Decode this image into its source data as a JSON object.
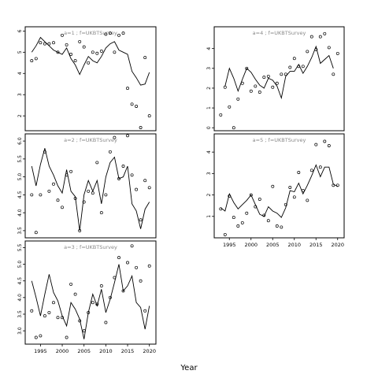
{
  "figure": {
    "xlabel": "Year",
    "colors": {
      "frame": "#000000",
      "panel_label": "#888888",
      "line": "#000000",
      "points": "#000000"
    }
  },
  "chart_data": [
    {
      "type": "line",
      "title": "a=1 ; f=UKBTSurvey",
      "xlim": [
        1991.5,
        2021.5
      ],
      "ylim": [
        1.3,
        6.2
      ],
      "yticks": [
        2,
        3,
        4,
        5,
        6
      ],
      "ytick_labels": [
        "2",
        "3",
        "4",
        "5",
        "6"
      ],
      "xticks": [],
      "xtick_labels": [],
      "series": [
        {
          "style": "line",
          "x": [
            1993,
            1994,
            1995,
            1996,
            1997,
            1998,
            1999,
            2000,
            2001,
            2002,
            2003,
            2004,
            2005,
            2006,
            2007,
            2008,
            2009,
            2010,
            2011,
            2012,
            2013,
            2014,
            2015,
            2016,
            2017,
            2018,
            2019,
            2020
          ],
          "y": [
            5.0,
            5.3,
            5.7,
            5.5,
            5.3,
            5.1,
            5.0,
            4.9,
            5.2,
            4.7,
            4.4,
            3.95,
            4.4,
            4.8,
            4.6,
            4.5,
            4.8,
            5.2,
            5.4,
            5.5,
            5.1,
            5.0,
            4.9,
            4.1,
            3.8,
            3.45,
            3.5,
            4.05
          ]
        },
        {
          "style": "points",
          "x": [
            1993,
            1994,
            1995,
            1996,
            1997,
            1998,
            1999,
            2000,
            2001,
            2002,
            2003,
            2004,
            2005,
            2006,
            2007,
            2008,
            2009,
            2010,
            2011,
            2012,
            2013,
            2014,
            2015,
            2016,
            2017,
            2018,
            2019,
            2020
          ],
          "y": [
            4.6,
            4.7,
            5.45,
            5.4,
            5.4,
            5.45,
            5.0,
            5.8,
            5.35,
            4.9,
            4.6,
            5.5,
            5.25,
            4.5,
            5.0,
            4.95,
            5.05,
            5.85,
            5.9,
            5.0,
            5.8,
            5.9,
            3.3,
            2.55,
            2.45,
            1.45,
            4.75,
            2.0
          ]
        }
      ]
    },
    {
      "type": "line",
      "title": "a=2 ; f=UKBTSurvey",
      "xlim": [
        1991.5,
        2021.5
      ],
      "ylim": [
        3.3,
        6.2
      ],
      "yticks": [
        3.5,
        4.0,
        4.5,
        5.0,
        5.5,
        6.0
      ],
      "ytick_labels": [
        "3.5",
        "4.0",
        "4.5",
        "5.0",
        "5.5",
        "6.0"
      ],
      "xticks": [],
      "xtick_labels": [],
      "series": [
        {
          "style": "line",
          "x": [
            1993,
            1994,
            1995,
            1996,
            1997,
            1998,
            1999,
            2000,
            2001,
            2002,
            2003,
            2004,
            2005,
            2006,
            2007,
            2008,
            2009,
            2010,
            2011,
            2012,
            2013,
            2014,
            2015,
            2016,
            2017,
            2018,
            2019,
            2020
          ],
          "y": [
            5.3,
            4.75,
            5.35,
            5.8,
            5.3,
            5.05,
            4.75,
            4.55,
            5.2,
            4.6,
            4.45,
            3.5,
            4.5,
            4.9,
            4.6,
            4.9,
            4.25,
            5.0,
            5.4,
            5.55,
            4.95,
            5.0,
            5.3,
            4.25,
            4.05,
            3.55,
            4.1,
            4.3
          ]
        },
        {
          "style": "points",
          "x": [
            1993,
            1994,
            1995,
            1996,
            1997,
            1998,
            1999,
            2000,
            2001,
            2002,
            2003,
            2004,
            2005,
            2006,
            2007,
            2008,
            2009,
            2010,
            2011,
            2012,
            2013,
            2014,
            2015,
            2016,
            2017,
            2018,
            2019,
            2020
          ],
          "y": [
            4.5,
            3.45,
            4.5,
            5.7,
            4.6,
            4.8,
            4.35,
            4.15,
            5.05,
            5.15,
            4.4,
            3.5,
            4.3,
            4.6,
            4.55,
            5.4,
            4.0,
            4.5,
            5.7,
            6.1,
            4.95,
            5.3,
            6.15,
            5.05,
            4.65,
            3.8,
            4.9,
            4.7
          ]
        }
      ]
    },
    {
      "type": "line",
      "title": "a=3 ; f=UKBTSurvey",
      "xlim": [
        1991.5,
        2021.5
      ],
      "ylim": [
        2.6,
        5.7
      ],
      "yticks": [
        3.0,
        3.5,
        4.0,
        4.5,
        5.0,
        5.5
      ],
      "ytick_labels": [
        "3.0",
        "3.5",
        "4.0",
        "4.5",
        "5.0",
        "5.5"
      ],
      "xticks": [
        1995,
        2000,
        2005,
        2010,
        2015,
        2020
      ],
      "xtick_labels": [
        "1995",
        "2000",
        "2005",
        "2010",
        "2015",
        "2020"
      ],
      "series": [
        {
          "style": "line",
          "x": [
            1993,
            1994,
            1995,
            1996,
            1997,
            1998,
            1999,
            2000,
            2001,
            2002,
            2003,
            2004,
            2005,
            2006,
            2007,
            2008,
            2009,
            2010,
            2011,
            2012,
            2013,
            2014,
            2015,
            2016,
            2017,
            2018,
            2019,
            2020
          ],
          "y": [
            4.5,
            4.0,
            3.45,
            4.1,
            4.7,
            4.15,
            3.9,
            3.45,
            3.15,
            3.85,
            3.65,
            3.35,
            2.75,
            3.55,
            4.1,
            3.75,
            4.25,
            3.55,
            3.95,
            4.45,
            5.0,
            4.2,
            4.35,
            4.65,
            3.85,
            3.7,
            3.05,
            3.75
          ]
        },
        {
          "style": "points",
          "x": [
            1993,
            1994,
            1995,
            1996,
            1997,
            1998,
            1999,
            2000,
            2001,
            2002,
            2003,
            2004,
            2005,
            2006,
            2007,
            2008,
            2009,
            2010,
            2011,
            2012,
            2013,
            2014,
            2015,
            2016,
            2017,
            2018,
            2019,
            2020
          ],
          "y": [
            3.6,
            2.8,
            2.85,
            3.45,
            3.55,
            3.85,
            3.4,
            3.4,
            2.8,
            4.4,
            4.1,
            3.3,
            3.0,
            3.55,
            3.85,
            3.8,
            4.35,
            3.25,
            4.0,
            4.6,
            5.2,
            4.2,
            5.05,
            5.55,
            4.9,
            4.5,
            3.6,
            4.95
          ]
        }
      ]
    },
    {
      "type": "line",
      "title": "a=4 ; f=UKBTSurvey",
      "xlim": [
        1991.5,
        2021.5
      ],
      "ylim": [
        -0.15,
        5.1
      ],
      "yticks": [
        0,
        1,
        2,
        3,
        4
      ],
      "ytick_labels": [
        "0",
        "1",
        "2",
        "3",
        "4"
      ],
      "xticks": [],
      "xtick_labels": [],
      "series": [
        {
          "style": "line",
          "x": [
            1994,
            1995,
            1996,
            1997,
            1998,
            1999,
            2000,
            2001,
            2002,
            2003,
            2004,
            2005,
            2006,
            2007,
            2008,
            2009,
            2010,
            2011,
            2012,
            2013,
            2014,
            2015,
            2016,
            2017,
            2018,
            2019
          ],
          "y": [
            2.1,
            3.0,
            2.5,
            1.85,
            2.45,
            3.0,
            2.8,
            2.45,
            2.15,
            2.0,
            2.5,
            2.4,
            2.1,
            1.5,
            2.6,
            2.85,
            2.85,
            3.2,
            2.75,
            3.1,
            3.55,
            4.1,
            3.25,
            3.45,
            3.65,
            3.0
          ]
        },
        {
          "style": "points",
          "x": [
            1993,
            1994,
            1995,
            1996,
            1997,
            1998,
            1999,
            2000,
            2001,
            2002,
            2003,
            2004,
            2005,
            2006,
            2007,
            2008,
            2009,
            2010,
            2011,
            2012,
            2013,
            2014,
            2015,
            2016,
            2017,
            2018,
            2019,
            2020
          ],
          "y": [
            0.65,
            2.05,
            1.05,
            0.0,
            1.45,
            2.25,
            3.0,
            1.85,
            2.1,
            1.8,
            2.55,
            2.6,
            2.05,
            2.25,
            2.7,
            2.7,
            3.05,
            3.5,
            3.1,
            3.1,
            3.85,
            4.6,
            3.95,
            4.6,
            4.75,
            4.05,
            2.7,
            3.75
          ]
        }
      ]
    },
    {
      "type": "line",
      "title": "a=5 ; f=UKBTSurvey",
      "xlim": [
        1991.5,
        2021.5
      ],
      "ylim": [
        0.0,
        4.85
      ],
      "yticks": [
        1,
        2,
        3,
        4
      ],
      "ytick_labels": [
        "1",
        "2",
        "3",
        "4"
      ],
      "xticks": [
        1995,
        2000,
        2005,
        2010,
        2015,
        2020
      ],
      "xtick_labels": [
        "1995",
        "2000",
        "2005",
        "2010",
        "2015",
        "2020"
      ],
      "series": [
        {
          "style": "line",
          "x": [
            1993,
            1994,
            1995,
            1996,
            1997,
            1998,
            1999,
            2000,
            2001,
            2002,
            2003,
            2004,
            2005,
            2006,
            2007,
            2008,
            2009,
            2010,
            2011,
            2012,
            2013,
            2014,
            2015,
            2016,
            2017,
            2018,
            2019,
            2020
          ],
          "y": [
            1.4,
            1.25,
            2.05,
            1.65,
            1.35,
            1.55,
            1.75,
            2.0,
            1.55,
            1.1,
            1.0,
            1.45,
            1.25,
            1.15,
            0.95,
            1.4,
            2.2,
            2.15,
            2.55,
            2.05,
            2.45,
            2.9,
            3.4,
            2.85,
            3.3,
            3.3,
            2.5,
            2.4
          ]
        },
        {
          "style": "points",
          "x": [
            1993,
            1994,
            1995,
            1996,
            1997,
            1998,
            1999,
            2000,
            2001,
            2002,
            2003,
            2004,
            2005,
            2006,
            2007,
            2008,
            2009,
            2010,
            2011,
            2012,
            2013,
            2014,
            2015,
            2016,
            2017,
            2018,
            2019,
            2020
          ],
          "y": [
            1.35,
            0.15,
            1.95,
            0.95,
            0.55,
            0.7,
            1.15,
            2.0,
            1.45,
            1.8,
            1.05,
            0.8,
            2.4,
            0.55,
            0.5,
            1.55,
            2.35,
            1.9,
            3.05,
            2.2,
            1.75,
            3.15,
            4.35,
            3.3,
            4.5,
            4.3,
            2.45,
            2.45
          ]
        }
      ]
    }
  ]
}
